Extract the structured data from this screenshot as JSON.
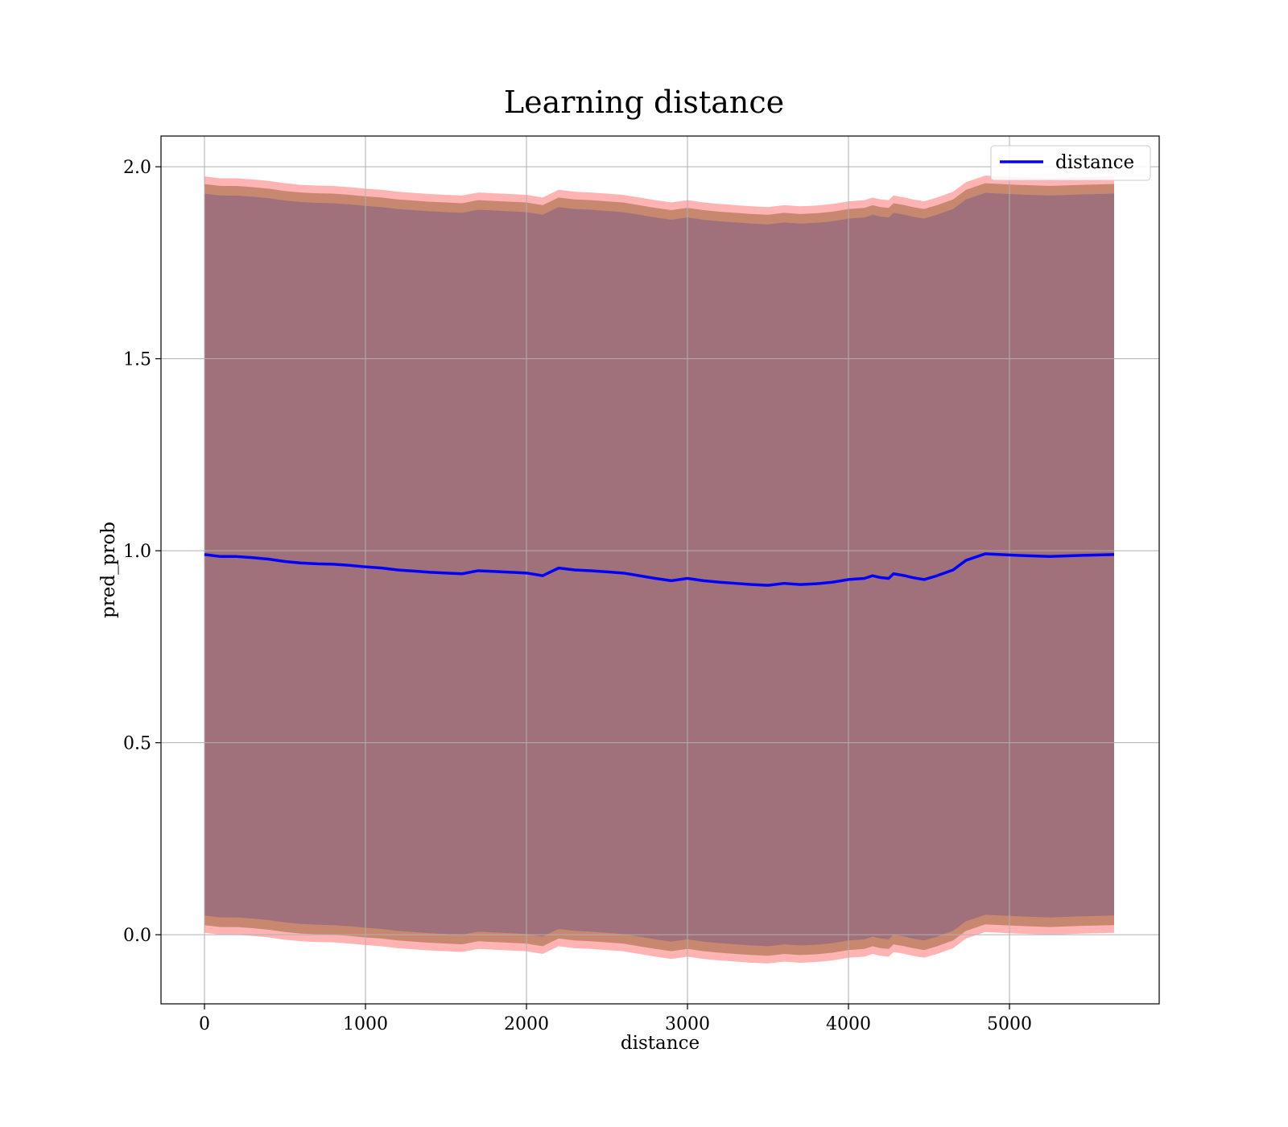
{
  "chart_data": {
    "type": "line",
    "title": "Learning distance",
    "xlabel": "distance",
    "ylabel": "pred_prob",
    "xlim": [
      -270,
      5930
    ],
    "ylim": [
      -0.18,
      2.08
    ],
    "xticks": [
      0,
      1000,
      2000,
      3000,
      4000,
      5000
    ],
    "yticks": [
      0.0,
      0.5,
      1.0,
      1.5,
      2.0
    ],
    "xtick_labels": [
      "0",
      "1000",
      "2000",
      "3000",
      "4000",
      "5000"
    ],
    "ytick_labels": [
      "0.0",
      "0.5",
      "1.0",
      "1.5",
      "2.0"
    ],
    "grid": true,
    "legend": {
      "position": "top-right",
      "entries": [
        "distance"
      ]
    },
    "colors": {
      "line": "#0000ff",
      "band_outer": "#ff9999",
      "band_middle": "#c88870",
      "band_inner": "#a0717a"
    },
    "series": [
      {
        "name": "distance",
        "x": [
          0,
          100,
          200,
          300,
          400,
          500,
          600,
          700,
          800,
          900,
          1000,
          1100,
          1200,
          1300,
          1400,
          1500,
          1600,
          1700,
          1800,
          1900,
          2000,
          2100,
          2200,
          2300,
          2400,
          2500,
          2600,
          2700,
          2800,
          2900,
          3000,
          3100,
          3200,
          3300,
          3400,
          3500,
          3600,
          3700,
          3800,
          3900,
          4000,
          4100,
          4150,
          4200,
          4250,
          4280,
          4350,
          4400,
          4470,
          4550,
          4650,
          4730,
          4850,
          5050,
          5250,
          5450,
          5650
        ],
        "y": [
          0.99,
          0.985,
          0.985,
          0.982,
          0.978,
          0.972,
          0.968,
          0.966,
          0.965,
          0.962,
          0.958,
          0.955,
          0.95,
          0.947,
          0.944,
          0.942,
          0.94,
          0.948,
          0.946,
          0.944,
          0.942,
          0.935,
          0.955,
          0.95,
          0.948,
          0.945,
          0.942,
          0.935,
          0.928,
          0.922,
          0.928,
          0.922,
          0.918,
          0.915,
          0.912,
          0.91,
          0.915,
          0.912,
          0.914,
          0.918,
          0.925,
          0.928,
          0.935,
          0.93,
          0.928,
          0.94,
          0.935,
          0.93,
          0.925,
          0.935,
          0.95,
          0.975,
          0.992,
          0.988,
          0.985,
          0.988,
          0.99
        ]
      }
    ],
    "bands": {
      "inner_half_width": 0.94,
      "middle_half_width": 0.965,
      "outer_half_width": 0.985
    }
  }
}
